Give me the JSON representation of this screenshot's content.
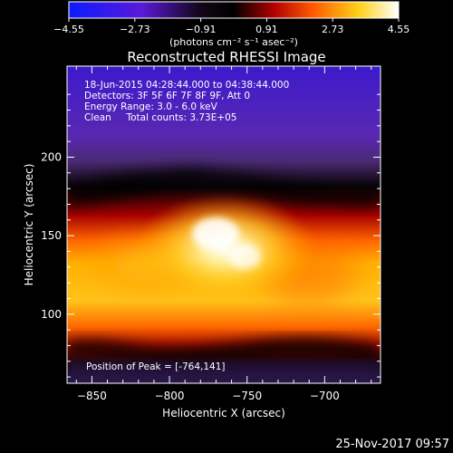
{
  "chart_data": {
    "type": "heatmap",
    "title": "Reconstructed RHESSI Image",
    "xlabel": "Heliocentric X (arcsec)",
    "ylabel": "Heliocentric Y (arcsec)",
    "xlim": [
      -866,
      -664
    ],
    "ylim": [
      56,
      258
    ],
    "x_ticks": [
      -850,
      -800,
      -750,
      -700
    ],
    "y_ticks": [
      100,
      150,
      200
    ],
    "x_tick_labels": [
      "−850",
      "−800",
      "−750",
      "−700"
    ],
    "y_tick_labels": [
      "100",
      "150",
      "200"
    ],
    "colorbar": {
      "min": -4.55,
      "max": 4.55,
      "ticks": [
        -4.55,
        -2.73,
        -0.91,
        0.91,
        2.73,
        4.55
      ],
      "tick_labels": [
        "−4.55",
        "−2.73",
        "−0.91",
        "0.91",
        "2.73",
        "4.55"
      ],
      "units_label": "(photons cm⁻² s⁻¹ asec⁻²)"
    },
    "info_lines": [
      "18-Jun-2015 04:28:44.000 to 04:38:44.000",
      "Detectors: 3F 5F 6F 7F 8F 9F, Att 0",
      "Energy Range: 3.0 - 6.0 keV",
      "Clean     Total counts: 3.73E+05"
    ],
    "peak_label": "Position of Peak = [-764,141]",
    "peak": [
      -764,
      141
    ],
    "grid": false
  },
  "footer": {
    "timestamp": "25-Nov-2017 09:57"
  }
}
